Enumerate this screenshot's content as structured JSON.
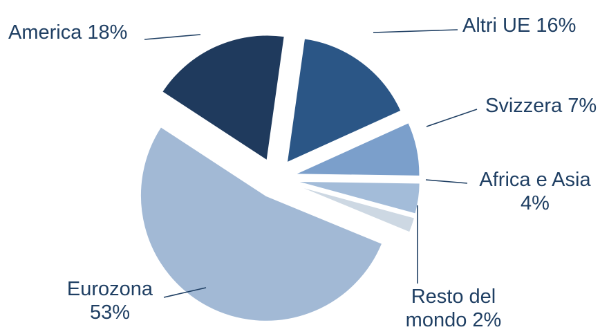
{
  "chart_data": {
    "type": "pie",
    "title": "",
    "slices": [
      {
        "label": "Altri UE",
        "value": 16,
        "display": "Altri UE 16%",
        "color": "#2b5686"
      },
      {
        "label": "Svizzera",
        "value": 7,
        "display": "Svizzera 7%",
        "color": "#7b9fcb"
      },
      {
        "label": "Africa e Asia",
        "value": 4,
        "display_lines": [
          "Africa e Asia",
          "4%"
        ],
        "color": "#a3bcd9"
      },
      {
        "label": "Resto del mondo",
        "value": 2,
        "display_lines": [
          "Resto del",
          "mondo 2%"
        ],
        "color": "#cdd8e3"
      },
      {
        "label": "Eurozona",
        "value": 53,
        "display_lines": [
          "Eurozona",
          "53%"
        ],
        "color": "#a2b9d5"
      },
      {
        "label": "America",
        "value": 18,
        "display": "America 18%",
        "color": "#1f3a5d"
      }
    ],
    "legend": "none",
    "data_labels": "outside-with-leader-lines"
  }
}
